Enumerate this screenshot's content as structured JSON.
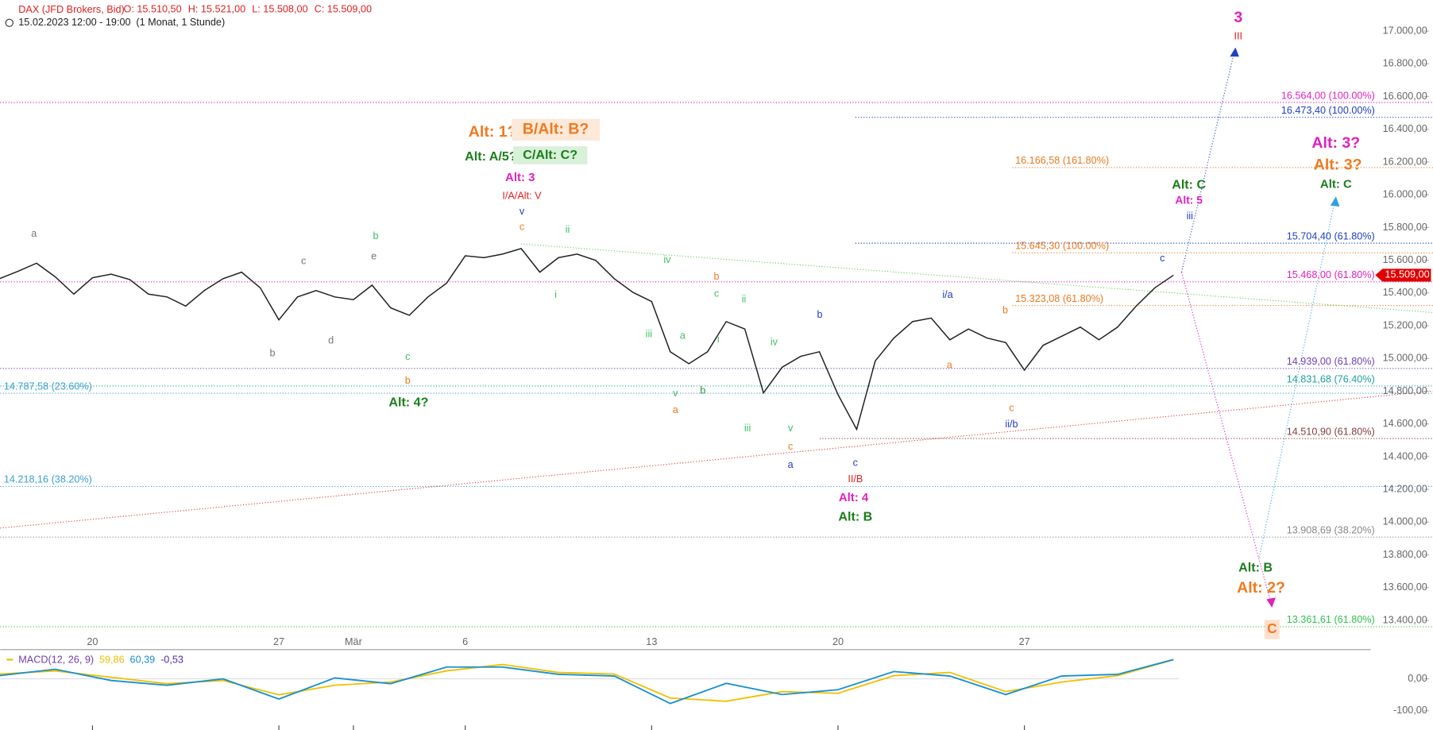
{
  "header": {
    "ohlc": [
      "O: 15.510,50",
      "H: 15.521,00",
      "L: 15.508,00",
      "C: 15.509,00"
    ],
    "range": "15.02.2023 12:00 - 19:00",
    "period": "(1 Monat, 1 Stunde)"
  },
  "chart_data": [
    {
      "type": "line",
      "title": "DAX (JFD Brokers, Bid)",
      "color": "#222222",
      "categories": [
        null,
        null,
        null,
        null,
        null,
        "20",
        null,
        null,
        null,
        null,
        null,
        null,
        null,
        null,
        null,
        "27",
        null,
        null,
        null,
        "Mär",
        null,
        null,
        null,
        null,
        null,
        "6",
        null,
        null,
        null,
        null,
        null,
        null,
        null,
        null,
        null,
        "13",
        null,
        null,
        null,
        null,
        null,
        null,
        null,
        null,
        null,
        "20",
        null,
        null,
        null,
        null,
        null,
        null,
        null,
        null,
        null,
        "27",
        null,
        null,
        null,
        null,
        null,
        null,
        null,
        null
      ],
      "values": [
        15487,
        15532,
        15582,
        15499,
        15393,
        15493,
        15515,
        15482,
        15393,
        15376,
        15320,
        15415,
        15487,
        15527,
        15432,
        15236,
        15376,
        15415,
        15376,
        15359,
        15448,
        15309,
        15264,
        15376,
        15460,
        15627,
        15616,
        15638,
        15672,
        15527,
        15616,
        15638,
        15599,
        15487,
        15404,
        15348,
        15041,
        14968,
        15041,
        15225,
        15180,
        14790,
        14946,
        15013,
        15041,
        14779,
        14567,
        14985,
        15125,
        15225,
        15247,
        15114,
        15180,
        15125,
        15097,
        14929,
        15080,
        15136,
        15192,
        15114,
        15192,
        15320,
        15432,
        15509
      ],
      "last_price": {
        "value": 15509,
        "label": "15.509,00"
      },
      "ylim": [
        13227,
        17190
      ],
      "yticks": [
        {
          "value": 17000,
          "label": "17.000,00"
        },
        {
          "value": 16800,
          "label": "16.800,00"
        },
        {
          "value": 16600,
          "label": "16.600,00"
        },
        {
          "value": 16400,
          "label": "16.400,00"
        },
        {
          "value": 16200,
          "label": "16.200,00"
        },
        {
          "value": 16000,
          "label": "16.000,00"
        },
        {
          "value": 15800,
          "label": "15.800,00"
        },
        {
          "value": 15600,
          "label": "15.600,00"
        },
        {
          "value": 15400,
          "label": "15.400,00"
        },
        {
          "value": 15200,
          "label": "15.200,00"
        },
        {
          "value": 15000,
          "label": "15.000,00"
        },
        {
          "value": 14800,
          "label": "14.800,00"
        },
        {
          "value": 14600,
          "label": "14.600,00"
        },
        {
          "value": 14400,
          "label": "14.400,00"
        },
        {
          "value": 14200,
          "label": "14.200,00"
        },
        {
          "value": 14000,
          "label": "14.000,00"
        },
        {
          "value": 13800,
          "label": "13.800,00"
        },
        {
          "value": 13600,
          "label": "13.600,00"
        },
        {
          "value": 13400,
          "label": "13.400,00"
        }
      ],
      "levels": [
        {
          "value": 16564,
          "label": "16.564,00 (100.00%)",
          "color": "#e020c0"
        },
        {
          "value": 16473.4,
          "label": "16.473,40 (100.00%)",
          "color": "#2040c0"
        },
        {
          "value": 16166.58,
          "label": "16.166,58 (161.80%)",
          "color": "#e87a20"
        },
        {
          "value": 15704.4,
          "label": "15.704,40 (61.80%)",
          "color": "#2040c0"
        },
        {
          "value": 15645.3,
          "label": "15.645,30 (100.00%)",
          "color": "#e87a20"
        },
        {
          "value": 15468,
          "label": "15.468,00 (61.80%)",
          "color": "#e020c0"
        },
        {
          "value": 15323.08,
          "label": "15.323,08 (61.80%)",
          "color": "#e87a20"
        },
        {
          "value": 14939,
          "label": "14.939,00 (61.80%)",
          "color": "#7040b0"
        },
        {
          "value": 14831.68,
          "label": "14.831,68 (76.40%)",
          "color": "#20a0a0"
        },
        {
          "value": 14787.58,
          "label": "14.787,58 (23.60%)",
          "color": "#3aa0d0"
        },
        {
          "value": 14510.9,
          "label": "14.510,90 (61.80%)",
          "color": "#804040"
        },
        {
          "value": 14218.16,
          "label": "14.218,16 (38.20%)",
          "color": "#3aa0d0"
        },
        {
          "value": 13908.69,
          "label": "13.908,69 (38.20%)",
          "color": "#888888"
        },
        {
          "value": 13361.61,
          "label": "13.361,61 (61.80%)",
          "color": "#30c050"
        }
      ],
      "annotations": [
        {
          "text": "3",
          "color": "#e020c0"
        },
        {
          "text": "III",
          "color": "#e02020"
        },
        {
          "text": "Alt: 1?",
          "color": "#f07a20"
        },
        {
          "text": "B/Alt: B?",
          "color": "#f07a20"
        },
        {
          "text": "Alt: A/5?",
          "color": "#1a7f1a"
        },
        {
          "text": "C/Alt: C?",
          "color": "#1a7f1a"
        },
        {
          "text": "Alt: 3",
          "color": "#e020c0"
        },
        {
          "text": "I/A/Alt: V",
          "color": "#e02020"
        },
        {
          "text": "v",
          "color": "#2040c0"
        },
        {
          "text": "c",
          "color": "#f07a20"
        },
        {
          "text": "a",
          "color": "#777777"
        },
        {
          "text": "b",
          "color": "#777777"
        },
        {
          "text": "c",
          "color": "#777777"
        },
        {
          "text": "d",
          "color": "#777777"
        },
        {
          "text": "e",
          "color": "#777777"
        },
        {
          "text": "b",
          "color": "#40c060"
        },
        {
          "text": "ii",
          "color": "#40c060"
        },
        {
          "text": "i",
          "color": "#40c060"
        },
        {
          "text": "iv",
          "color": "#40c060"
        },
        {
          "text": "iii",
          "color": "#40c060"
        },
        {
          "text": "b",
          "color": "#f07a20"
        },
        {
          "text": "c",
          "color": "#40c060"
        },
        {
          "text": "ii",
          "color": "#40c060"
        },
        {
          "text": "a",
          "color": "#40c060"
        },
        {
          "text": "i",
          "color": "#40c060"
        },
        {
          "text": "v",
          "color": "#40c060"
        },
        {
          "text": "b",
          "color": "#1a9f3a"
        },
        {
          "text": "a",
          "color": "#f07a20"
        },
        {
          "text": "iv",
          "color": "#40c060"
        },
        {
          "text": "iii",
          "color": "#40c060"
        },
        {
          "text": "v",
          "color": "#40c060"
        },
        {
          "text": "c",
          "color": "#f07a20"
        },
        {
          "text": "a",
          "color": "#2040c0"
        },
        {
          "text": "b",
          "color": "#2040c0"
        },
        {
          "text": "c",
          "color": "#2040c0"
        },
        {
          "text": "II/B",
          "color": "#e02020"
        },
        {
          "text": "Alt: 4",
          "color": "#e020c0"
        },
        {
          "text": "Alt: B",
          "color": "#1a7f1a"
        },
        {
          "text": "c",
          "color": "#40c060"
        },
        {
          "text": "b",
          "color": "#f07a20"
        },
        {
          "text": "Alt: 4?",
          "color": "#1a7f1a"
        },
        {
          "text": "i/a",
          "color": "#2040c0"
        },
        {
          "text": "b",
          "color": "#f07a20"
        },
        {
          "text": "a",
          "color": "#f07a20"
        },
        {
          "text": "c",
          "color": "#f07a20"
        },
        {
          "text": "ii/b",
          "color": "#2040c0"
        },
        {
          "text": "c",
          "color": "#2040c0"
        },
        {
          "text": "iii",
          "color": "#2040c0"
        },
        {
          "text": "Alt: 5",
          "color": "#e020c0"
        },
        {
          "text": "Alt: C",
          "color": "#1a7f1a"
        },
        {
          "text": "Alt: 3?",
          "color": "#e020c0"
        },
        {
          "text": "Alt: 3?",
          "color": "#f07a20"
        },
        {
          "text": "Alt: C",
          "color": "#1a7f1a"
        },
        {
          "text": "Alt: B",
          "color": "#1a7f1a"
        },
        {
          "text": "Alt: 2?",
          "color": "#f07a20"
        },
        {
          "text": "C",
          "color": "#f07a20"
        }
      ]
    },
    {
      "type": "line",
      "title": "MACD(12, 26, 9)",
      "series": [
        {
          "color": "#f0c000",
          "values": [
            15,
            25,
            5,
            -15,
            -5,
            -50,
            -20,
            -10,
            25,
            45,
            20,
            15,
            -60,
            -70,
            -40,
            -45,
            10,
            20,
            -40,
            -10,
            10,
            59.86
          ],
          "last": {
            "value": 59.86,
            "label": "59,86"
          }
        },
        {
          "color": "#1890d0",
          "values": [
            10,
            30,
            -5,
            -20,
            0,
            -63,
            3,
            -15,
            37,
            37,
            14,
            9,
            -77,
            -14,
            -49,
            -34,
            23,
            9,
            -49,
            9,
            14,
            60.39
          ],
          "last": {
            "value": 60.39,
            "label": "60,39"
          }
        }
      ],
      "histogram_last": {
        "value": -0.53,
        "label": "-0,53"
      },
      "ylim": [
        -160,
        88.6
      ],
      "yticks": [
        {
          "value": 0,
          "label": "0,00"
        },
        {
          "value": -100,
          "label": "-100,00"
        }
      ]
    }
  ]
}
